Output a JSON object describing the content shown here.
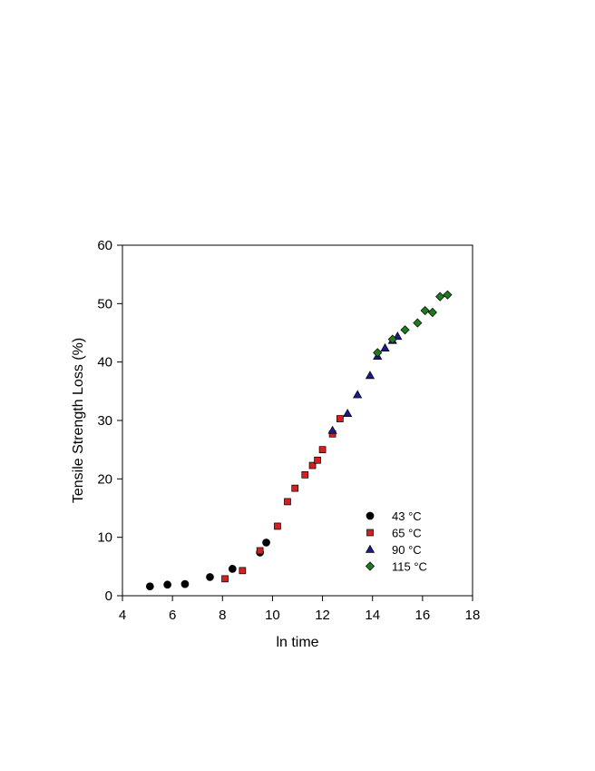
{
  "chart_data": {
    "type": "scatter",
    "title": "",
    "xlabel": "ln time",
    "ylabel": "Tensile Strength Loss (%)",
    "xlim": [
      4,
      18
    ],
    "ylim": [
      0,
      60
    ],
    "xticks": [
      4,
      6,
      8,
      10,
      12,
      14,
      16,
      18
    ],
    "yticks": [
      0,
      10,
      20,
      30,
      40,
      50,
      60
    ],
    "grid": false,
    "legend_position": "bottom-right",
    "series": [
      {
        "name": "43 °C",
        "marker": "circle",
        "color": "#000000",
        "points": [
          [
            5.1,
            1.6
          ],
          [
            5.8,
            1.9
          ],
          [
            6.5,
            2.0
          ],
          [
            7.5,
            3.2
          ],
          [
            8.4,
            4.6
          ],
          [
            9.5,
            7.4
          ],
          [
            9.75,
            9.1
          ]
        ]
      },
      {
        "name": "65 °C",
        "marker": "square",
        "color": "#d42020",
        "points": [
          [
            8.1,
            2.9
          ],
          [
            8.8,
            4.3
          ],
          [
            9.5,
            7.7
          ],
          [
            10.2,
            11.9
          ],
          [
            10.6,
            16.1
          ],
          [
            10.9,
            18.4
          ],
          [
            11.3,
            20.7
          ],
          [
            11.6,
            22.3
          ],
          [
            11.8,
            23.2
          ],
          [
            12.0,
            25.0
          ],
          [
            12.4,
            27.7
          ],
          [
            12.7,
            30.3
          ]
        ]
      },
      {
        "name": "90 °C",
        "marker": "triangle",
        "color": "#1a1a8c",
        "points": [
          [
            12.4,
            28.3
          ],
          [
            13.0,
            31.2
          ],
          [
            13.4,
            34.4
          ],
          [
            13.9,
            37.7
          ],
          [
            14.2,
            41.0
          ],
          [
            14.5,
            42.4
          ],
          [
            14.8,
            43.7
          ],
          [
            15.0,
            44.4
          ]
        ]
      },
      {
        "name": "115 °C",
        "marker": "diamond",
        "color": "#1d7a1d",
        "points": [
          [
            14.2,
            41.6
          ],
          [
            14.8,
            43.9
          ],
          [
            15.3,
            45.5
          ],
          [
            15.8,
            46.7
          ],
          [
            16.1,
            48.8
          ],
          [
            16.4,
            48.5
          ],
          [
            16.7,
            51.2
          ],
          [
            17.0,
            51.5
          ]
        ]
      }
    ]
  }
}
